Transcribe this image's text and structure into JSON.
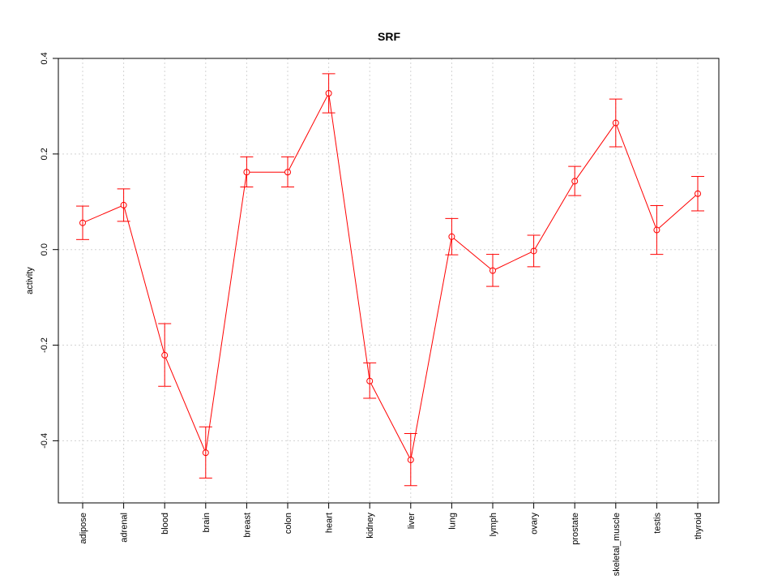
{
  "chart_data": {
    "type": "line",
    "title": "SRF",
    "xlabel": "",
    "ylabel": "activity",
    "ylim": [
      -0.53,
      0.4
    ],
    "yticks": [
      -0.4,
      -0.2,
      0.0,
      0.2,
      0.4
    ],
    "ytick_labels": [
      "-0.4",
      "-0.2",
      "0.0",
      "0.2",
      "0.4"
    ],
    "grid": true,
    "color": "#ff0000",
    "categories": [
      "adipose",
      "adrenal",
      "blood",
      "brain",
      "breast",
      "colon",
      "heart",
      "kidney",
      "liver",
      "lung",
      "lymph",
      "ovary",
      "prostate",
      "skeletal_muscle",
      "testis",
      "thyroid"
    ],
    "series": [
      {
        "values": [
          0.056,
          0.093,
          -0.221,
          -0.425,
          0.162,
          0.162,
          0.327,
          -0.275,
          -0.44,
          0.027,
          -0.044,
          -0.003,
          0.143,
          0.265,
          0.041,
          0.117
        ],
        "err_low": [
          0.021,
          0.059,
          -0.286,
          -0.478,
          0.131,
          0.131,
          0.286,
          -0.311,
          -0.494,
          -0.011,
          -0.077,
          -0.036,
          0.113,
          0.215,
          -0.01,
          0.081
        ],
        "err_high": [
          0.091,
          0.127,
          -0.155,
          -0.371,
          0.194,
          0.194,
          0.368,
          -0.237,
          -0.385,
          0.065,
          -0.01,
          0.03,
          0.174,
          0.315,
          0.092,
          0.153
        ]
      }
    ]
  }
}
